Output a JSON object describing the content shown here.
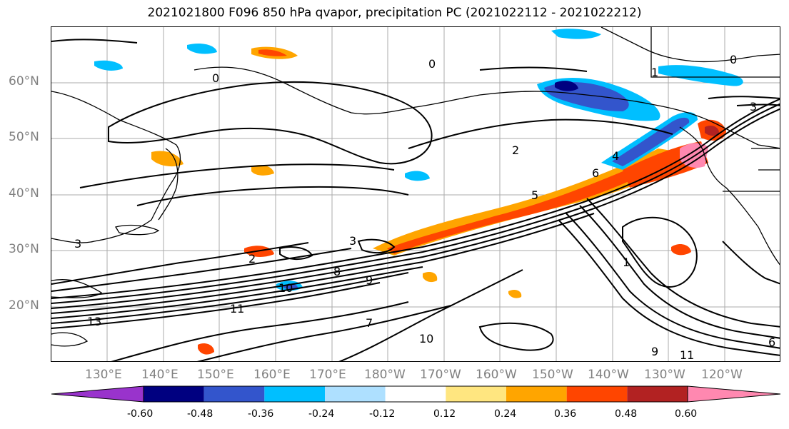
{
  "title": "2021021800 F096 850 hPa qvapor, precipitation PC (2021022112 - 2021022212)",
  "map": {
    "lat_labels": [
      "60°N",
      "50°N",
      "40°N",
      "30°N",
      "20°N"
    ],
    "lon_labels": [
      "130°E",
      "140°E",
      "150°E",
      "160°E",
      "170°E",
      "180°W",
      "170°W",
      "160°W",
      "150°W",
      "140°W",
      "130°W",
      "120°W"
    ],
    "lat_range": [
      10,
      70
    ],
    "lon_range": [
      120,
      250
    ],
    "gridlines": true,
    "contour_labels": [
      "0",
      "0",
      "0",
      "1",
      "1",
      "2",
      "2",
      "3",
      "3",
      "3",
      "4",
      "5",
      "6",
      "7",
      "8",
      "9",
      "9",
      "10",
      "10",
      "11",
      "11",
      "13",
      "6"
    ]
  },
  "colorbar": {
    "levels": [
      "-0.60",
      "-0.48",
      "-0.36",
      "-0.24",
      "-0.12",
      "0.12",
      "0.24",
      "0.36",
      "0.48",
      "0.60"
    ],
    "colors": [
      "#9933cc",
      "#000080",
      "#3355cc",
      "#00bfff",
      "#aee0ff",
      "#ffffff",
      "#ffe680",
      "#ffa500",
      "#ff4500",
      "#b22222",
      "#ff88b0"
    ],
    "extend": "both"
  }
}
